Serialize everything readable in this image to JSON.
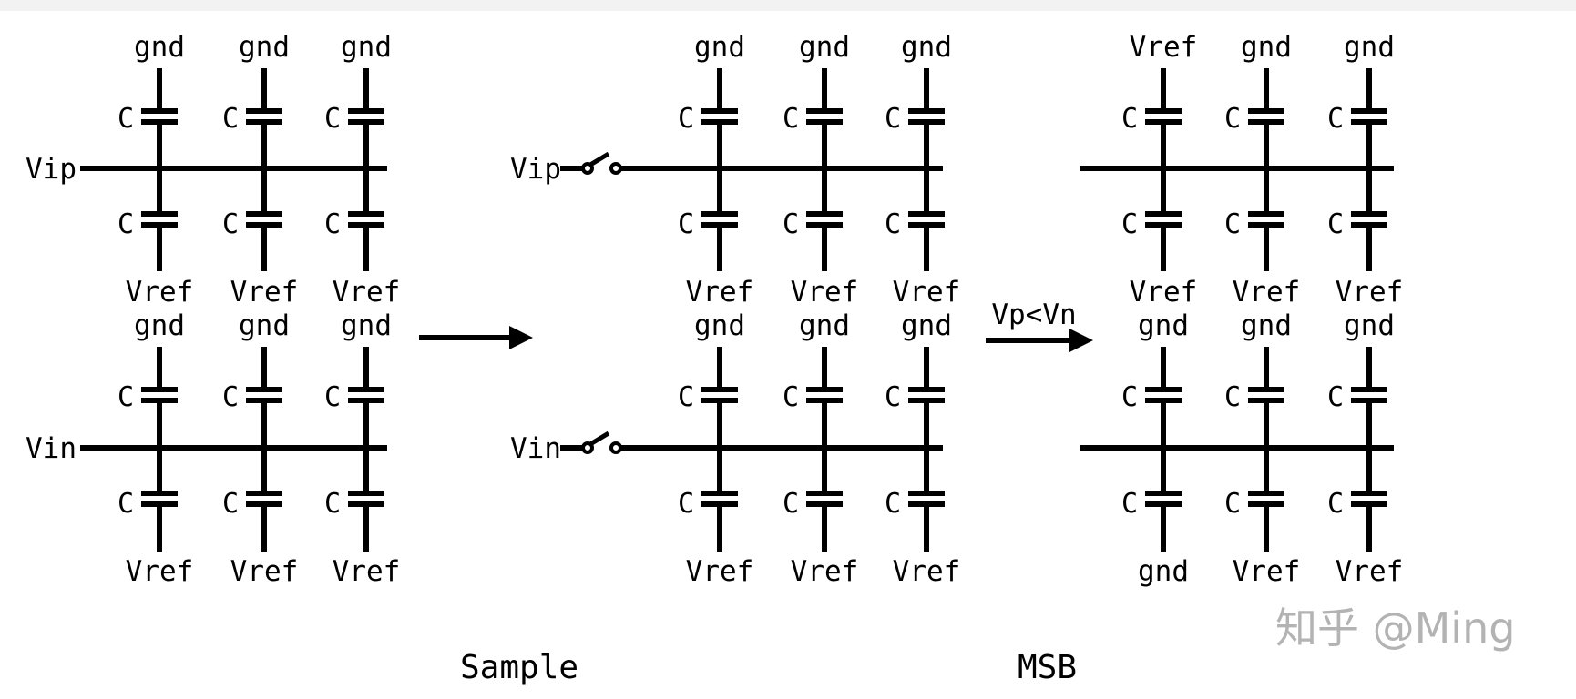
{
  "panels": [
    {
      "name": "initial",
      "rails": [
        {
          "label": "Vip",
          "switch": false
        },
        {
          "label": "Vin",
          "switch": false
        }
      ],
      "upper": {
        "top": [
          "gnd",
          "gnd",
          "gnd"
        ],
        "bottom": [
          "Vref",
          "Vref",
          "Vref"
        ]
      },
      "lower": {
        "top": [
          "gnd",
          "gnd",
          "gnd"
        ],
        "bottom": [
          "Vref",
          "Vref",
          "Vref"
        ]
      },
      "cap_label": "C",
      "caption": ""
    },
    {
      "name": "sample",
      "rails": [
        {
          "label": "Vip",
          "switch": true
        },
        {
          "label": "Vin",
          "switch": true
        }
      ],
      "upper": {
        "top": [
          "gnd",
          "gnd",
          "gnd"
        ],
        "bottom": [
          "Vref",
          "Vref",
          "Vref"
        ]
      },
      "lower": {
        "top": [
          "gnd",
          "gnd",
          "gnd"
        ],
        "bottom": [
          "Vref",
          "Vref",
          "Vref"
        ]
      },
      "cap_label": "C",
      "caption": "Sample"
    },
    {
      "name": "msb",
      "rails": [
        {
          "label": "",
          "switch": false
        },
        {
          "label": "",
          "switch": false
        }
      ],
      "upper": {
        "top": [
          "Vref",
          "gnd",
          "gnd"
        ],
        "bottom": [
          "Vref",
          "Vref",
          "Vref"
        ]
      },
      "lower": {
        "top": [
          "gnd",
          "gnd",
          "gnd"
        ],
        "bottom": [
          "gnd",
          "Vref",
          "Vref"
        ]
      },
      "cap_label": "C",
      "caption": "MSB"
    }
  ],
  "arrows": [
    {
      "label": ""
    },
    {
      "label": "Vp<Vn"
    }
  ],
  "watermark": "知乎 @Ming",
  "colors": {
    "line": "#000000",
    "watermark": "#9a9a9a"
  }
}
